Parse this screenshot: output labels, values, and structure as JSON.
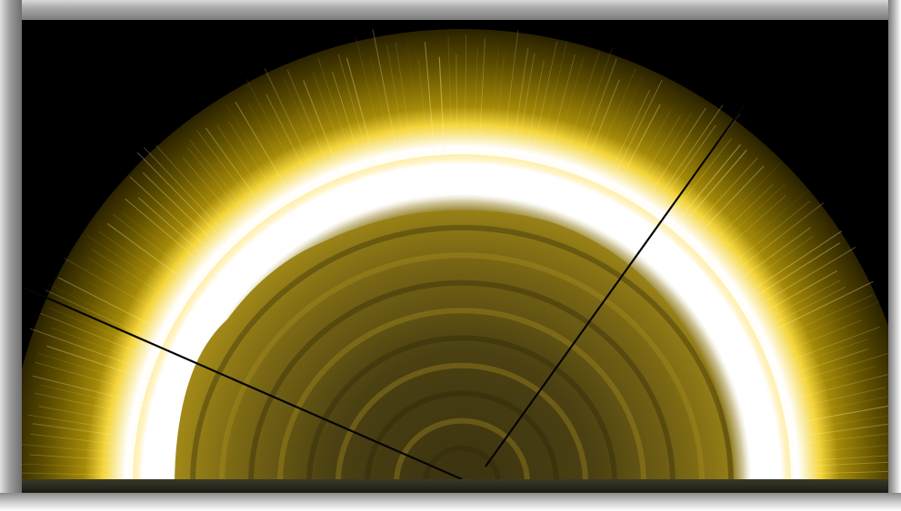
{
  "image": {
    "subject": "solar-corona-hemisphere",
    "colors": {
      "background": "#000000",
      "corona_outer": "#6b5a00",
      "limb_glow": "#ffffff",
      "disk": "#7a6a10",
      "disk_center": "#3e3510",
      "ray": "#fff6b0"
    }
  }
}
